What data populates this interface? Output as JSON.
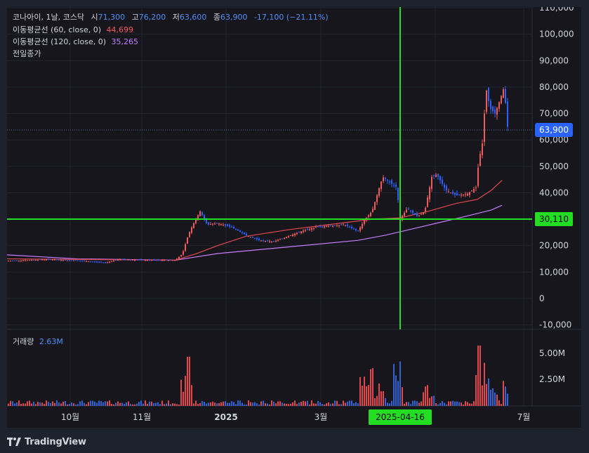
{
  "legend": {
    "symbol": "코나아이, 1날, 코스닥",
    "open_label": "시",
    "open": "71,300",
    "high_label": "고",
    "high": "76,200",
    "low_label": "저",
    "low": "63,600",
    "close_label": "종",
    "close": "63,900",
    "change": "-17,100 (−21.11%)",
    "ma60_label": "이동평균선 (60, close, 0)",
    "ma60_value": "44,699",
    "ma120_label": "이동평균선 (120, close, 0)",
    "ma120_value": "35,265",
    "prev_close_label": "전일종가",
    "volume_label": "거래량",
    "volume_value": "2.63M"
  },
  "price_axis": {
    "ticks": [
      "110,000",
      "100,000",
      "90,000",
      "80,000",
      "70,000",
      "60,000",
      "50,000",
      "40,000",
      "30,000",
      "20,000",
      "10,000",
      "0",
      "-10,000"
    ],
    "current_label": "63,900",
    "crosshair_label": "30,110"
  },
  "volume_axis": {
    "ticks": [
      "5.00M",
      "2.50M"
    ]
  },
  "time_axis": {
    "ticks": [
      "10월",
      "11월",
      "2025",
      "3월",
      "7월"
    ],
    "crosshair_label": "2025-04-16"
  },
  "colors": {
    "up": "#2962ff",
    "down": "#f05a5a",
    "ma60": "#e0484e",
    "ma120": "#c77dff",
    "crosshair": "#22dd22",
    "current": "#2962ff"
  },
  "footer": {
    "brand": "TradingView"
  },
  "chart_data": {
    "type": "candlestick",
    "x": [
      "2024-09",
      "2024-10",
      "2024-11",
      "2024-12",
      "2025-01",
      "2025-02",
      "2025-03",
      "2025-04",
      "2025-05",
      "2025-06"
    ],
    "close_approx": [
      14000,
      14500,
      14500,
      24000,
      26000,
      24000,
      28000,
      31000,
      40000,
      63900
    ],
    "ylim": [
      -12000,
      112000
    ],
    "series": [
      {
        "name": "이동평균선 (60, close, 0)",
        "last": 44699
      },
      {
        "name": "이동평균선 (120, close, 0)",
        "last": 35265
      }
    ],
    "last_close": 63900,
    "crosshair_price": 30110,
    "crosshair_date": "2025-04-16",
    "volume_last": "2.63M"
  }
}
